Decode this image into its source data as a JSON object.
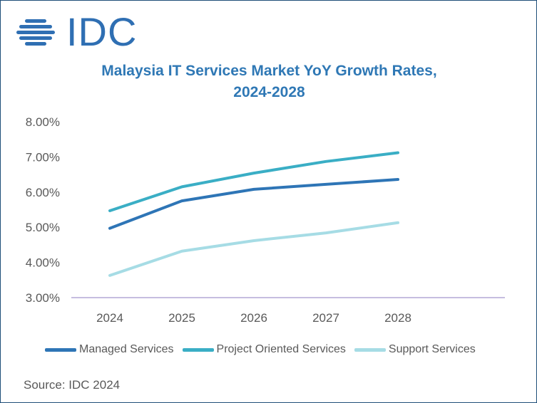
{
  "logo": {
    "text": "IDC",
    "color": "#2f6fb3"
  },
  "title_lines": [
    "Malaysia IT Services Market YoY Growth Rates,",
    "2024-2028"
  ],
  "source": "Source: IDC 2024",
  "chart_data": {
    "type": "line",
    "title": "Malaysia IT Services Market YoY Growth Rates, 2024-2028",
    "xlabel": "",
    "ylabel": "",
    "categories": [
      "2024",
      "2025",
      "2026",
      "2027",
      "2028"
    ],
    "y_ticks": [
      "3.00%",
      "4.00%",
      "5.00%",
      "6.00%",
      "7.00%",
      "8.00%"
    ],
    "ylim": [
      3.0,
      8.0
    ],
    "grid": false,
    "legend_position": "bottom",
    "series": [
      {
        "name": "Managed Services",
        "color": "#2e75b6",
        "values": [
          4.97,
          5.75,
          6.08,
          6.22,
          6.36
        ]
      },
      {
        "name": "Project Oriented Services",
        "color": "#3aaec5",
        "values": [
          5.47,
          6.15,
          6.54,
          6.87,
          7.12
        ]
      },
      {
        "name": "Support Services",
        "color": "#a6dce5",
        "values": [
          3.63,
          4.32,
          4.62,
          4.84,
          5.13
        ]
      }
    ]
  }
}
